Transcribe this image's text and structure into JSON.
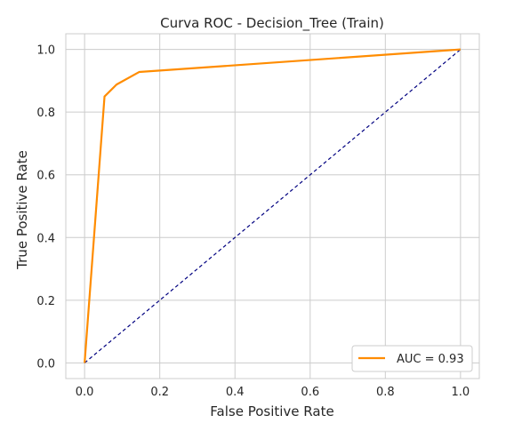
{
  "chart_data": {
    "type": "line",
    "title": "Curva ROC - Decision_Tree (Train)",
    "xlabel": "False Positive Rate",
    "ylabel": "True Positive Rate",
    "xlim": [
      -0.05,
      1.05
    ],
    "ylim": [
      -0.05,
      1.05
    ],
    "xticks": [
      "0.0",
      "0.2",
      "0.4",
      "0.6",
      "0.8",
      "1.0"
    ],
    "yticks": [
      "0.0",
      "0.2",
      "0.4",
      "0.6",
      "0.8",
      "1.0"
    ],
    "grid": true,
    "legend_position": "lower-right",
    "series": [
      {
        "name": "AUC = 0.93",
        "color": "#ff8c00",
        "style": "solid",
        "x": [
          0.0,
          0.053,
          0.085,
          0.145,
          1.0
        ],
        "y": [
          0.0,
          0.85,
          0.888,
          0.928,
          1.0
        ]
      },
      {
        "color": "#000080",
        "style": "dashed",
        "x": [
          0.0,
          1.0
        ],
        "y": [
          0.0,
          1.0
        ]
      }
    ]
  }
}
